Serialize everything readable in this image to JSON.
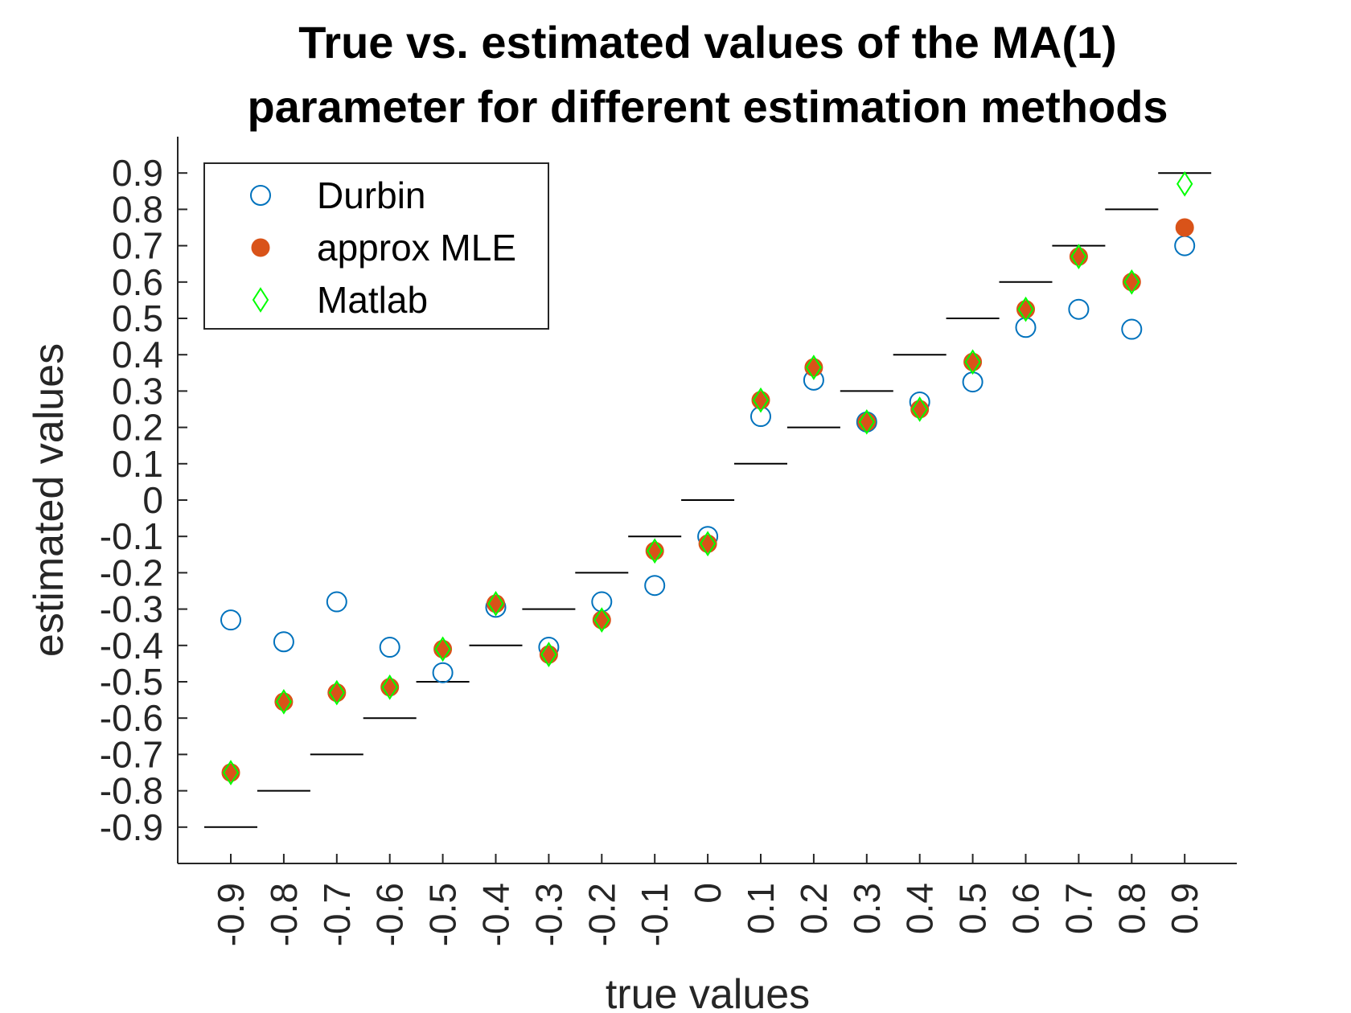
{
  "chart_data": {
    "type": "scatter",
    "title": [
      "True vs. estimated values of the MA(1)",
      "parameter for different estimation methods"
    ],
    "xlabel": "true values",
    "ylabel": "estimated values",
    "categories": [
      "-0.9",
      "-0.8",
      "-0.7",
      "-0.6",
      "-0.5",
      "-0.4",
      "-0.3",
      "-0.2",
      "-0.1",
      "0",
      "0.1",
      "0.2",
      "0.3",
      "0.4",
      "0.5",
      "0.6",
      "0.7",
      "0.8",
      "0.9"
    ],
    "true_values": [
      -0.9,
      -0.8,
      -0.7,
      -0.6,
      -0.5,
      -0.4,
      -0.3,
      -0.2,
      -0.1,
      0,
      0.1,
      0.2,
      0.3,
      0.4,
      0.5,
      0.6,
      0.7,
      0.8,
      0.9
    ],
    "y_ticks": [
      "-0.9",
      "-0.8",
      "-0.7",
      "-0.6",
      "-0.5",
      "-0.4",
      "-0.3",
      "-0.2",
      "-0.1",
      "0",
      "0.1",
      "0.2",
      "0.3",
      "0.4",
      "0.5",
      "0.6",
      "0.7",
      "0.8",
      "0.9"
    ],
    "ylim": [
      -1.0,
      1.0
    ],
    "series": [
      {
        "name": "Durbin",
        "marker": "circle",
        "color": "#0072BD",
        "values": [
          -0.33,
          -0.39,
          -0.28,
          -0.405,
          -0.475,
          -0.295,
          -0.405,
          -0.28,
          -0.235,
          -0.1,
          0.23,
          0.33,
          0.215,
          0.27,
          0.325,
          0.475,
          0.525,
          0.47,
          0.7
        ]
      },
      {
        "name": "approx MLE",
        "marker": "filled-circle",
        "color": "#D95319",
        "values": [
          -0.75,
          -0.555,
          -0.53,
          -0.515,
          -0.41,
          -0.285,
          -0.425,
          -0.33,
          -0.14,
          -0.12,
          0.275,
          0.365,
          0.215,
          0.25,
          0.38,
          0.525,
          0.67,
          0.6,
          0.75
        ]
      },
      {
        "name": "Matlab",
        "marker": "diamond",
        "color": "#00FF00",
        "values": [
          -0.75,
          -0.555,
          -0.53,
          -0.515,
          -0.41,
          -0.285,
          -0.425,
          -0.33,
          -0.14,
          -0.12,
          0.275,
          0.365,
          0.215,
          0.25,
          0.38,
          0.525,
          0.67,
          0.6,
          0.87
        ]
      }
    ],
    "legend_position": "top-left",
    "grid": false
  }
}
